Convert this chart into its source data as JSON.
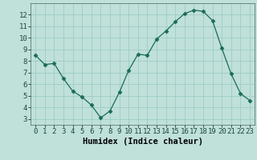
{
  "x": [
    0,
    1,
    2,
    3,
    4,
    5,
    6,
    7,
    8,
    9,
    10,
    11,
    12,
    13,
    14,
    15,
    16,
    17,
    18,
    19,
    20,
    21,
    22,
    23
  ],
  "y": [
    8.5,
    7.7,
    7.8,
    6.5,
    5.4,
    4.9,
    4.2,
    3.1,
    3.7,
    5.3,
    7.2,
    8.6,
    8.5,
    9.9,
    10.6,
    11.4,
    12.1,
    12.4,
    12.3,
    11.5,
    9.1,
    6.9,
    5.2,
    4.6
  ],
  "line_color": "#1a6b5a",
  "marker": "D",
  "marker_size": 2.5,
  "bg_color": "#c0e0da",
  "grid_color": "#96c8bf",
  "xlabel": "Humidex (Indice chaleur)",
  "ylim": [
    2.5,
    13.0
  ],
  "xlim": [
    -0.5,
    23.5
  ],
  "yticks": [
    3,
    4,
    5,
    6,
    7,
    8,
    9,
    10,
    11,
    12
  ],
  "xticks": [
    0,
    1,
    2,
    3,
    4,
    5,
    6,
    7,
    8,
    9,
    10,
    11,
    12,
    13,
    14,
    15,
    16,
    17,
    18,
    19,
    20,
    21,
    22,
    23
  ],
  "xlabel_fontsize": 7.5,
  "tick_fontsize": 6.5
}
